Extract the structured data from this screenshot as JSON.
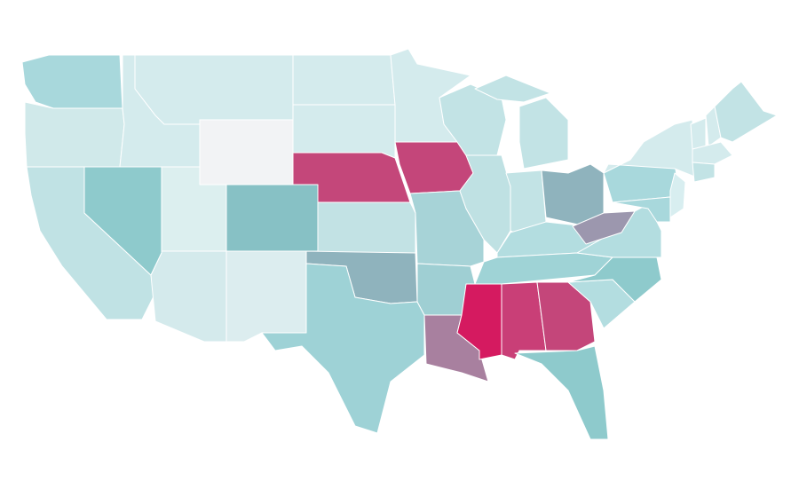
{
  "map": {
    "regions": [
      {
        "color": "#a8d8dc"
      },
      {
        "color": "#d0e9ea"
      },
      {
        "color": "#c0e2e4"
      },
      {
        "color": "#8ecacc"
      },
      {
        "color": "#d4ebed"
      },
      {
        "color": "#d4ebed"
      },
      {
        "color": "#f2f3f5"
      },
      {
        "color": "#dcefef"
      },
      {
        "color": "#87c1c5"
      },
      {
        "color": "#d4eaec"
      },
      {
        "color": "#dcedef"
      },
      {
        "color": "#d4ebed"
      },
      {
        "color": "#d4ebed"
      },
      {
        "color": "#c4477a"
      },
      {
        "color": "#c2e2e4"
      },
      {
        "color": "#8fb3bd"
      },
      {
        "color": "#9ed2d6"
      },
      {
        "color": "#d4ebed"
      },
      {
        "color": "#c4467a"
      },
      {
        "color": "#a7d3d7"
      },
      {
        "color": "#9fcfd3"
      },
      {
        "color": "#a8809f"
      },
      {
        "color": "#c2e3e5"
      },
      {
        "color": "#bfe1e3"
      },
      {
        "color": "#c2e3e5"
      },
      {
        "color": "#c2e3e5"
      },
      {
        "color": "#c2e3e5"
      },
      {
        "color": "#8fb3bd"
      },
      {
        "color": "#b3dde0"
      },
      {
        "color": "#9fd3d6"
      },
      {
        "color": "#d51a60"
      },
      {
        "color": "#c93f77"
      },
      {
        "color": "#c4467a"
      },
      {
        "color": "#8ecacc"
      },
      {
        "color": "#b3dde0"
      },
      {
        "color": "#8ecacc"
      },
      {
        "color": "#b3dde0"
      },
      {
        "color": "#9c97ae"
      },
      {
        "color": "#a8d8dc"
      },
      {
        "color": "#d4ebed"
      },
      {
        "color": "#a8d8dc"
      },
      {
        "color": "#d8eef0"
      },
      {
        "color": "#d4ebed"
      },
      {
        "color": "#d4ebed"
      },
      {
        "color": "#c2e3e5"
      },
      {
        "color": "#d4ebed"
      },
      {
        "color": "#c2e3e5"
      }
    ]
  }
}
